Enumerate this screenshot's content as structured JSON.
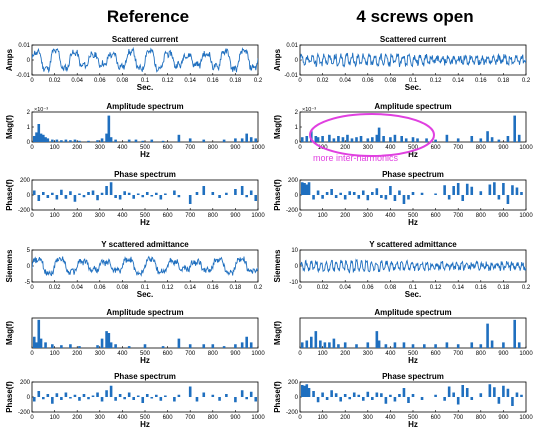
{
  "columns": [
    {
      "heading": "Reference"
    },
    {
      "heading": "4 screws open"
    }
  ],
  "annotation": {
    "text": "more inter-harmonics",
    "color": "#e040e0"
  },
  "colors": {
    "series": "#1f6fbf",
    "axis": "#000000"
  },
  "chart_data": [
    {
      "type": "line",
      "panel": "ref-current",
      "title": "Scattered current",
      "xlabel": "Sec.",
      "ylabel": "Amps",
      "xlim": [
        0,
        0.2
      ],
      "ylim": [
        -0.01,
        0.01
      ],
      "xticks": [
        "0",
        "0.02",
        "0.04",
        "0.06",
        "0.08",
        "0.1",
        "0.12",
        "0.14",
        "0.16",
        "0.18",
        "0.2"
      ],
      "yticks": [
        "-0.01",
        "0",
        "0.01"
      ],
      "signal": {
        "amplitude": 0.007,
        "cycles": 12,
        "noise": 0.002,
        "beat_cycles": 2.5
      }
    },
    {
      "type": "bar",
      "panel": "ref-amp",
      "title": "Amplitude spectrum",
      "xlabel": "Hz",
      "ylabel": "Mag(f)",
      "exponent": "×10⁻³",
      "xlim": [
        0,
        1000
      ],
      "ylim": [
        0,
        2.5
      ],
      "xticks": [
        "0",
        "100",
        "200",
        "300",
        "400",
        "500",
        "600",
        "700",
        "800",
        "900",
        "1000"
      ],
      "yticks": [
        "0",
        "1",
        "2"
      ],
      "x": [
        10,
        20,
        30,
        40,
        50,
        60,
        70,
        90,
        110,
        130,
        150,
        170,
        190,
        210,
        250,
        290,
        310,
        330,
        340,
        350,
        370,
        430,
        460,
        490,
        530,
        580,
        650,
        700,
        760,
        850,
        900,
        930,
        950,
        970,
        990
      ],
      "values": [
        0.5,
        0.8,
        1.5,
        0.7,
        0.6,
        0.4,
        0.3,
        0.2,
        0.2,
        0.15,
        0.2,
        0.15,
        0.2,
        0.1,
        0.1,
        0.15,
        0.3,
        0.7,
        2.2,
        0.4,
        0.2,
        0.2,
        0.2,
        0.1,
        0.2,
        0.1,
        0.6,
        0.3,
        0.2,
        0.2,
        0.3,
        0.3,
        0.7,
        0.4,
        0.3
      ]
    },
    {
      "type": "bar",
      "panel": "ref-phase",
      "title": "Phase spectrum",
      "xlabel": "Hz",
      "ylabel": "Phase(f)",
      "xlim": [
        0,
        1000
      ],
      "ylim": [
        -200,
        200
      ],
      "xticks": [
        "0",
        "100",
        "200",
        "300",
        "400",
        "500",
        "600",
        "700",
        "800",
        "900",
        "1000"
      ],
      "yticks": [
        "-200",
        "0",
        "200"
      ],
      "x": [
        10,
        30,
        50,
        70,
        90,
        110,
        130,
        150,
        170,
        190,
        210,
        230,
        250,
        270,
        290,
        310,
        330,
        350,
        370,
        390,
        410,
        430,
        450,
        470,
        490,
        510,
        530,
        550,
        570,
        590,
        630,
        650,
        700,
        730,
        760,
        800,
        830,
        860,
        900,
        930,
        950,
        970,
        990
      ],
      "values": [
        60,
        -80,
        40,
        -40,
        30,
        -60,
        70,
        -50,
        50,
        -90,
        20,
        -30,
        40,
        60,
        -70,
        30,
        120,
        170,
        -40,
        -60,
        50,
        30,
        -50,
        20,
        -30,
        40,
        -20,
        30,
        -60,
        20,
        60,
        -30,
        -120,
        40,
        120,
        40,
        -40,
        30,
        80,
        120,
        -30,
        60,
        -80
      ]
    },
    {
      "type": "line",
      "panel": "ref-admittance",
      "title": "Y scattered admittance",
      "xlabel": "Sec.",
      "ylabel": "Siemens",
      "xlim": [
        0,
        0.2
      ],
      "ylim": [
        -5,
        5
      ],
      "xticks": [
        "0",
        "0.02",
        "0.04",
        "0.06",
        "0.08",
        "0.1",
        "0.12",
        "0.14",
        "0.16",
        "0.18",
        "0.2"
      ],
      "yticks": [
        "-5",
        "0",
        "5"
      ],
      "signal": {
        "amplitude": 2.5,
        "cycles": 10,
        "noise": 0.9,
        "beat_cycles": 2.5
      }
    },
    {
      "type": "bar",
      "panel": "ref-amp-2",
      "title": "Amplitude spectrum",
      "xlabel": "Hz",
      "ylabel": "Mag(f)",
      "xlim": [
        0,
        1000
      ],
      "ylim": [
        0,
        1.6
      ],
      "xticks": [
        "0",
        "100",
        "200",
        "300",
        "400",
        "500",
        "600",
        "700",
        "800",
        "900",
        "1000"
      ],
      "yticks": [],
      "x": [
        10,
        20,
        30,
        40,
        60,
        90,
        130,
        170,
        210,
        290,
        310,
        330,
        340,
        350,
        370,
        430,
        500,
        580,
        650,
        700,
        760,
        800,
        850,
        900,
        930,
        950,
        970
      ],
      "values": [
        0.6,
        0.3,
        1.5,
        0.5,
        0.3,
        0.2,
        0.15,
        0.2,
        0.1,
        0.15,
        0.5,
        0.9,
        0.8,
        0.3,
        0.2,
        0.1,
        0.2,
        0.1,
        0.5,
        0.2,
        0.2,
        0.2,
        0.1,
        0.2,
        0.3,
        0.6,
        0.3
      ]
    },
    {
      "type": "bar",
      "panel": "ref-phase-2",
      "title": "Phase spectrum",
      "xlabel": "Hz",
      "ylabel": "Phase(f)",
      "xlim": [
        0,
        1000
      ],
      "ylim": [
        -200,
        200
      ],
      "xticks": [
        "0",
        "100",
        "200",
        "300",
        "400",
        "500",
        "600",
        "700",
        "800",
        "900",
        "1000"
      ],
      "yticks": [
        "-200",
        "0",
        "200"
      ],
      "x": [
        10,
        30,
        50,
        70,
        90,
        110,
        130,
        150,
        170,
        190,
        210,
        230,
        250,
        270,
        290,
        310,
        330,
        350,
        370,
        390,
        410,
        430,
        450,
        470,
        490,
        510,
        530,
        550,
        570,
        590,
        630,
        650,
        700,
        730,
        760,
        800,
        830,
        860,
        900,
        930,
        950,
        970,
        990
      ],
      "values": [
        -60,
        80,
        -30,
        40,
        -90,
        50,
        -40,
        60,
        -20,
        30,
        -50,
        40,
        -30,
        20,
        60,
        -60,
        90,
        150,
        -50,
        40,
        -30,
        60,
        -40,
        20,
        -80,
        40,
        -20,
        30,
        -50,
        20,
        -60,
        30,
        140,
        -60,
        60,
        30,
        -50,
        40,
        -70,
        90,
        -30,
        70,
        -60
      ]
    },
    {
      "type": "line",
      "panel": "open-current",
      "title": "Scattered current",
      "xlabel": "Sec.",
      "ylabel": "Amps",
      "xlim": [
        0,
        0.2
      ],
      "ylim": [
        -0.01,
        0.01
      ],
      "xticks": [
        "0",
        "0.02",
        "0.04",
        "0.06",
        "0.08",
        "0.1",
        "0.12",
        "0.14",
        "0.16",
        "0.18",
        "0.2"
      ],
      "yticks": [
        "-0.01",
        "0",
        "0.01"
      ],
      "signal": {
        "amplitude": 0.0035,
        "cycles": 40,
        "noise": 0.002,
        "beat_cycles": 1
      }
    },
    {
      "type": "bar",
      "panel": "open-amp",
      "title": "Amplitude spectrum",
      "xlabel": "Hz",
      "ylabel": "Mag(f)",
      "exponent": "×10⁻³",
      "xlim": [
        0,
        1000
      ],
      "ylim": [
        0,
        2.5
      ],
      "xticks": [
        "0",
        "100",
        "200",
        "300",
        "400",
        "500",
        "600",
        "700",
        "800",
        "900",
        "1000"
      ],
      "yticks": [
        "0",
        "1",
        "2"
      ],
      "x": [
        10,
        30,
        50,
        70,
        80,
        100,
        130,
        150,
        170,
        190,
        210,
        230,
        250,
        270,
        300,
        320,
        340,
        350,
        370,
        400,
        420,
        450,
        470,
        500,
        520,
        560,
        600,
        650,
        700,
        760,
        800,
        830,
        850,
        880,
        920,
        950,
        970
      ],
      "values": [
        0.4,
        0.5,
        0.9,
        0.5,
        0.4,
        0.5,
        0.6,
        0.3,
        0.5,
        0.4,
        0.6,
        0.3,
        0.4,
        0.5,
        0.3,
        0.4,
        0.6,
        1.2,
        0.5,
        0.4,
        0.6,
        0.5,
        0.3,
        0.4,
        0.3,
        0.3,
        0.2,
        0.6,
        0.3,
        0.5,
        0.3,
        0.9,
        0.4,
        0.2,
        0.5,
        2.2,
        0.6
      ]
    },
    {
      "type": "bar",
      "panel": "open-phase",
      "title": "Phase spectrum",
      "xlabel": "Hz",
      "ylabel": "Phase(f)",
      "xlim": [
        0,
        1000
      ],
      "ylim": [
        -200,
        200
      ],
      "xticks": [
        "0",
        "100",
        "200",
        "300",
        "400",
        "500",
        "600",
        "700",
        "800",
        "900",
        "1000"
      ],
      "yticks": [
        "-200",
        "0",
        "200"
      ],
      "x": [
        10,
        20,
        30,
        40,
        60,
        80,
        100,
        120,
        140,
        160,
        180,
        200,
        220,
        240,
        260,
        280,
        300,
        320,
        340,
        360,
        380,
        400,
        420,
        440,
        460,
        480,
        500,
        540,
        600,
        640,
        660,
        680,
        700,
        720,
        740,
        760,
        800,
        840,
        860,
        880,
        900,
        920,
        940,
        960,
        980
      ],
      "values": [
        170,
        160,
        140,
        170,
        -60,
        60,
        -50,
        40,
        80,
        -40,
        30,
        -60,
        50,
        40,
        -50,
        60,
        -70,
        40,
        90,
        -40,
        -60,
        120,
        -80,
        60,
        -120,
        -60,
        40,
        30,
        20,
        130,
        -60,
        120,
        160,
        -80,
        150,
        110,
        50,
        140,
        170,
        -60,
        160,
        -120,
        130,
        100,
        40
      ]
    },
    {
      "type": "line",
      "panel": "open-admittance",
      "title": "Y scattered admittance",
      "xlabel": "Sec.",
      "ylabel": "Siemens",
      "xlim": [
        0,
        0.2
      ],
      "ylim": [
        -10,
        10
      ],
      "xticks": [
        "0",
        "0.02",
        "0.04",
        "0.06",
        "0.08",
        "0.1",
        "0.12",
        "0.14",
        "0.16",
        "0.18",
        "0.2"
      ],
      "yticks": [
        "-10",
        "0",
        "10"
      ],
      "signal": {
        "amplitude": 3,
        "cycles": 45,
        "noise": 1.5,
        "beat_cycles": 1
      }
    },
    {
      "type": "bar",
      "panel": "open-amp-2",
      "title": "Amplitude spectrum",
      "xlabel": "Hz",
      "ylabel": "Mag(f)",
      "xlim": [
        0,
        1000
      ],
      "ylim": [
        0,
        1.6
      ],
      "xticks": [
        "0",
        "100",
        "200",
        "300",
        "400",
        "500",
        "600",
        "700",
        "800",
        "900",
        "1000"
      ],
      "yticks": [],
      "x": [
        10,
        30,
        50,
        70,
        90,
        110,
        130,
        150,
        170,
        200,
        250,
        300,
        340,
        350,
        380,
        420,
        460,
        500,
        550,
        600,
        650,
        700,
        760,
        800,
        830,
        850,
        900,
        950,
        970
      ],
      "values": [
        0.3,
        0.4,
        0.6,
        0.9,
        0.4,
        0.3,
        0.3,
        0.5,
        0.2,
        0.3,
        0.2,
        0.3,
        0.9,
        0.4,
        0.2,
        0.3,
        0.3,
        0.2,
        0.2,
        0.2,
        0.3,
        0.2,
        0.3,
        0.2,
        1.3,
        0.4,
        0.3,
        1.5,
        0.3
      ]
    },
    {
      "type": "bar",
      "panel": "open-phase-2",
      "title": "Phase spectrum",
      "xlabel": "Hz",
      "ylabel": "Phase(f)",
      "xlim": [
        0,
        1000
      ],
      "ylim": [
        -200,
        200
      ],
      "xticks": [
        "0",
        "100",
        "200",
        "300",
        "400",
        "500",
        "600",
        "700",
        "800",
        "900",
        "1000"
      ],
      "yticks": [
        "-200",
        "0",
        "200"
      ],
      "x": [
        10,
        20,
        30,
        40,
        60,
        80,
        100,
        120,
        140,
        160,
        180,
        200,
        220,
        240,
        260,
        280,
        300,
        320,
        340,
        360,
        380,
        400,
        420,
        440,
        460,
        480,
        500,
        540,
        600,
        640,
        660,
        680,
        700,
        720,
        740,
        760,
        800,
        840,
        860,
        880,
        900,
        920,
        940,
        960,
        980
      ],
      "values": [
        160,
        150,
        170,
        120,
        80,
        -70,
        60,
        -40,
        90,
        50,
        -60,
        40,
        -30,
        60,
        30,
        -50,
        70,
        -40,
        60,
        50,
        -90,
        30,
        -60,
        40,
        120,
        -80,
        40,
        -40,
        30,
        -50,
        140,
        60,
        -100,
        160,
        120,
        -40,
        50,
        170,
        130,
        -90,
        150,
        110,
        -120,
        60,
        30
      ]
    }
  ]
}
